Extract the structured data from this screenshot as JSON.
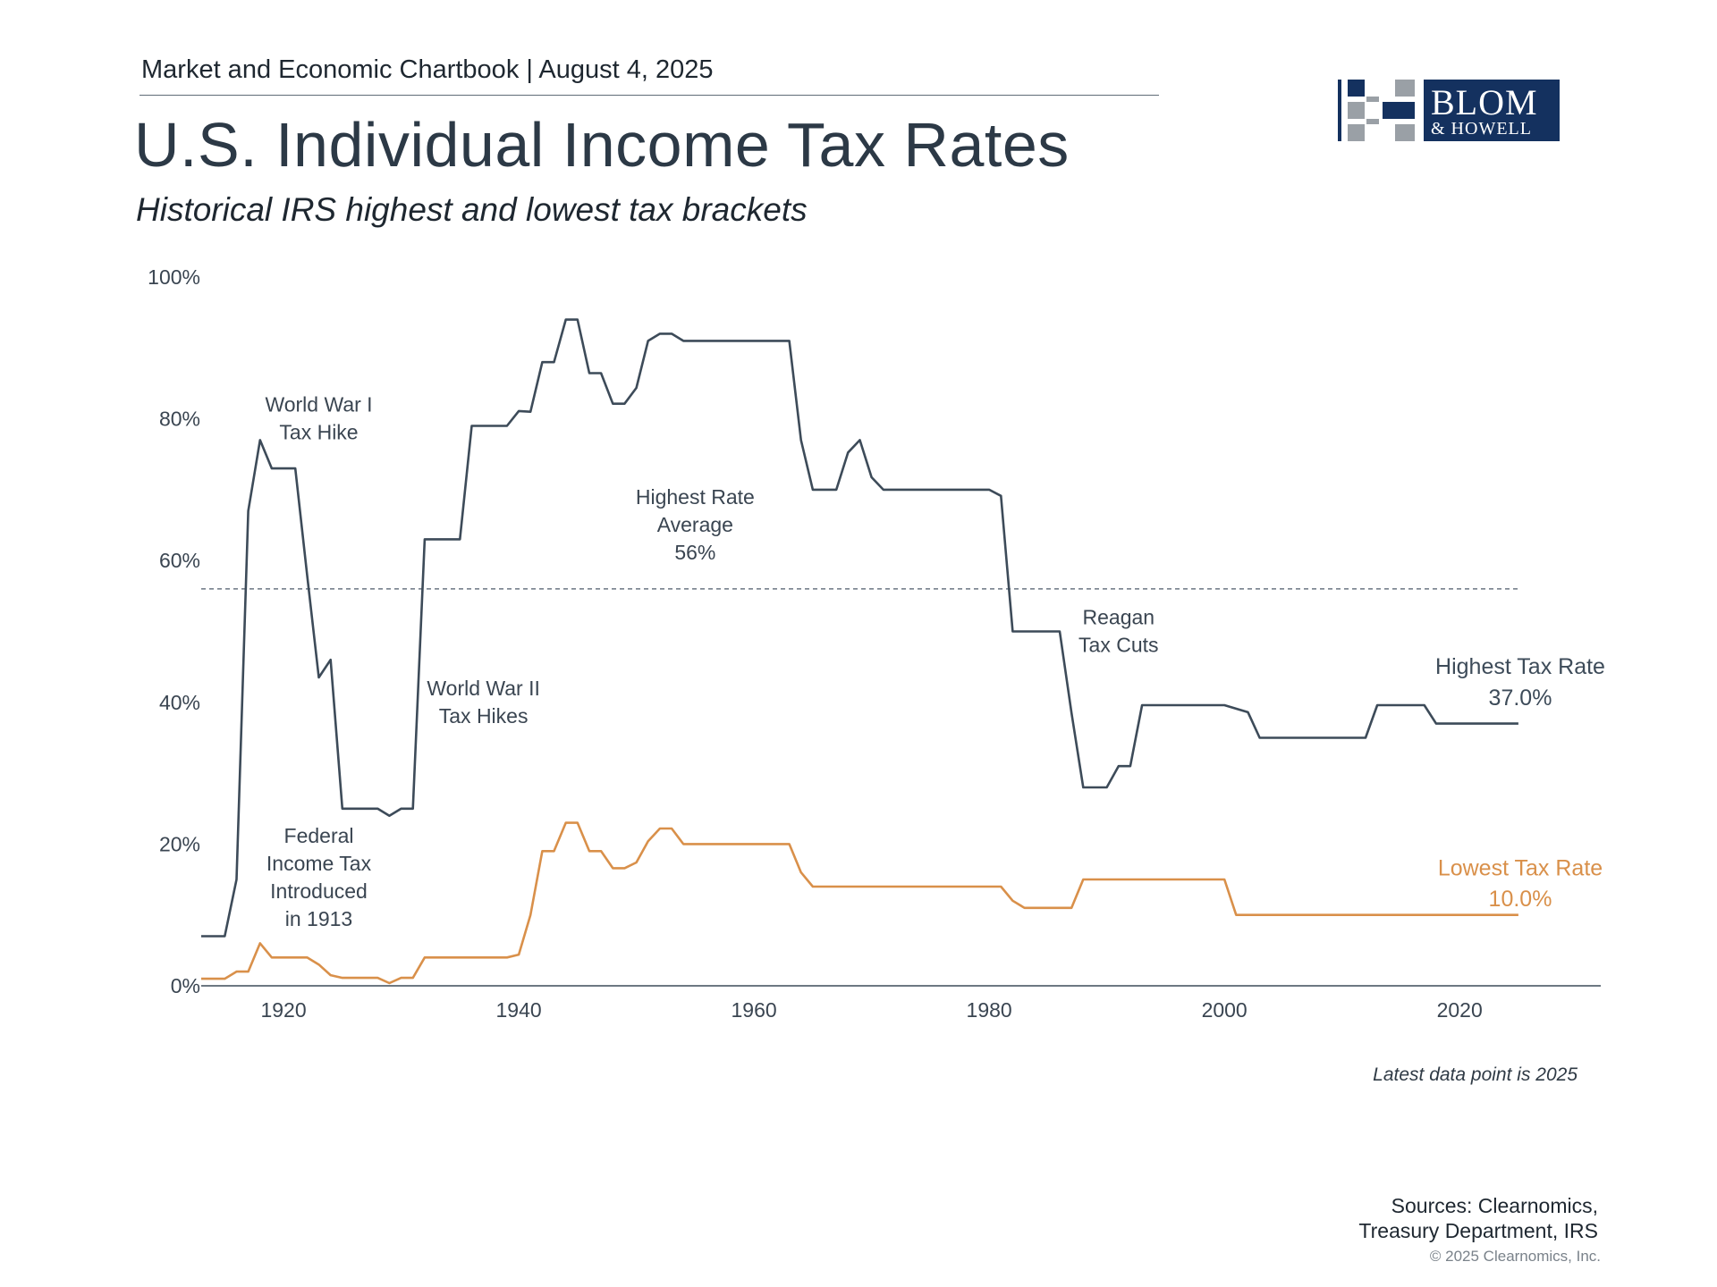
{
  "header": {
    "kicker": "Market and Economic Chartbook | August 4, 2025",
    "title": "U.S. Individual Income Tax Rates",
    "subtitle": "Historical IRS highest and lowest tax brackets"
  },
  "logo": {
    "line1": "BLOM",
    "line2": "& HOWELL",
    "colors": {
      "navy": "#14315f",
      "gray": "#9aa0a6"
    }
  },
  "chart_data": {
    "type": "line",
    "xlim": [
      1913,
      2032
    ],
    "ylim": [
      0,
      100
    ],
    "x_ticks": [
      1920,
      1940,
      1960,
      1980,
      2000,
      2020
    ],
    "x_tick_labels": [
      "1920",
      "1940",
      "1960",
      "1980",
      "2000",
      "2020"
    ],
    "y_ticks": [
      0,
      20,
      40,
      60,
      80,
      100
    ],
    "y_tick_labels": [
      "0%",
      "20%",
      "40%",
      "60%",
      "80%",
      "100%"
    ],
    "grid": false,
    "average_line": {
      "value": 56,
      "label_lines": [
        "Highest Rate",
        "Average",
        "56%"
      ]
    },
    "series": [
      {
        "name": "Highest Tax Rate",
        "end_label": "37.0%",
        "color": "#3d4b59",
        "points": [
          [
            1913,
            7
          ],
          [
            1915,
            7
          ],
          [
            1916,
            15
          ],
          [
            1917,
            67
          ],
          [
            1918,
            77
          ],
          [
            1919,
            73
          ],
          [
            1920,
            73
          ],
          [
            1921,
            73
          ],
          [
            1922,
            58
          ],
          [
            1923,
            43.5
          ],
          [
            1924,
            46
          ],
          [
            1925,
            25
          ],
          [
            1928,
            25
          ],
          [
            1929,
            24
          ],
          [
            1930,
            25
          ],
          [
            1931,
            25
          ],
          [
            1932,
            63
          ],
          [
            1935,
            63
          ],
          [
            1936,
            79
          ],
          [
            1939,
            79
          ],
          [
            1940,
            81.1
          ],
          [
            1941,
            81
          ],
          [
            1942,
            88
          ],
          [
            1943,
            88
          ],
          [
            1944,
            94
          ],
          [
            1945,
            94
          ],
          [
            1946,
            86.45
          ],
          [
            1947,
            86.45
          ],
          [
            1948,
            82.13
          ],
          [
            1949,
            82.13
          ],
          [
            1950,
            84.36
          ],
          [
            1951,
            91
          ],
          [
            1952,
            92
          ],
          [
            1953,
            92
          ],
          [
            1954,
            91
          ],
          [
            1963,
            91
          ],
          [
            1964,
            77
          ],
          [
            1965,
            70
          ],
          [
            1967,
            70
          ],
          [
            1968,
            75.25
          ],
          [
            1969,
            77
          ],
          [
            1970,
            71.75
          ],
          [
            1971,
            70
          ],
          [
            1980,
            70
          ],
          [
            1981,
            69.125
          ],
          [
            1982,
            50
          ],
          [
            1986,
            50
          ],
          [
            1987,
            38.5
          ],
          [
            1988,
            28
          ],
          [
            1990,
            28
          ],
          [
            1991,
            31
          ],
          [
            1992,
            31
          ],
          [
            1993,
            39.6
          ],
          [
            2000,
            39.6
          ],
          [
            2002,
            38.6
          ],
          [
            2003,
            35
          ],
          [
            2012,
            35
          ],
          [
            2013,
            39.6
          ],
          [
            2017,
            39.6
          ],
          [
            2018,
            37
          ],
          [
            2025,
            37
          ]
        ]
      },
      {
        "name": "Lowest Tax Rate",
        "end_label": "10.0%",
        "color": "#d9904a",
        "points": [
          [
            1913,
            1
          ],
          [
            1915,
            1
          ],
          [
            1916,
            2
          ],
          [
            1917,
            2
          ],
          [
            1918,
            6
          ],
          [
            1919,
            4
          ],
          [
            1922,
            4
          ],
          [
            1923,
            3
          ],
          [
            1924,
            1.5
          ],
          [
            1925,
            1.125
          ],
          [
            1928,
            1.125
          ],
          [
            1929,
            0.375
          ],
          [
            1930,
            1.125
          ],
          [
            1931,
            1.125
          ],
          [
            1932,
            4
          ],
          [
            1939,
            4
          ],
          [
            1940,
            4.4
          ],
          [
            1941,
            10
          ],
          [
            1942,
            19
          ],
          [
            1943,
            19
          ],
          [
            1944,
            23
          ],
          [
            1945,
            23
          ],
          [
            1946,
            19
          ],
          [
            1947,
            19
          ],
          [
            1948,
            16.6
          ],
          [
            1949,
            16.6
          ],
          [
            1950,
            17.4
          ],
          [
            1951,
            20.4
          ],
          [
            1952,
            22.2
          ],
          [
            1953,
            22.2
          ],
          [
            1954,
            20
          ],
          [
            1963,
            20
          ],
          [
            1964,
            16
          ],
          [
            1965,
            14
          ],
          [
            1981,
            14
          ],
          [
            1982,
            12
          ],
          [
            1983,
            11
          ],
          [
            1987,
            11
          ],
          [
            1988,
            15
          ],
          [
            2000,
            15
          ],
          [
            2001,
            10
          ],
          [
            2025,
            10
          ]
        ]
      }
    ],
    "annotations": [
      {
        "id": "ww1",
        "lines": [
          "World War I",
          "Tax Hike"
        ],
        "year": 1923,
        "y": 81,
        "align": "middle"
      },
      {
        "id": "ww2",
        "lines": [
          "World War II",
          "Tax Hikes"
        ],
        "year": 1937,
        "y": 41,
        "align": "middle"
      },
      {
        "id": "avg",
        "lines": [
          "Highest Rate",
          "Average",
          "56%"
        ],
        "year": 1955,
        "y": 68,
        "align": "middle"
      },
      {
        "id": "reagan",
        "lines": [
          "Reagan",
          "Tax Cuts"
        ],
        "year": 1991,
        "y": 51,
        "align": "middle"
      },
      {
        "id": "federal",
        "lines": [
          "Federal",
          "Income Tax",
          "Introduced",
          "in 1913"
        ],
        "year": 1923,
        "y": 20.2,
        "align": "middle"
      }
    ]
  },
  "footer": {
    "note": "Latest data point is 2025",
    "sources_line1": "Sources: Clearnomics,",
    "sources_line2": "Treasury Department, IRS",
    "copyright": "© 2025 Clearnomics, Inc."
  }
}
